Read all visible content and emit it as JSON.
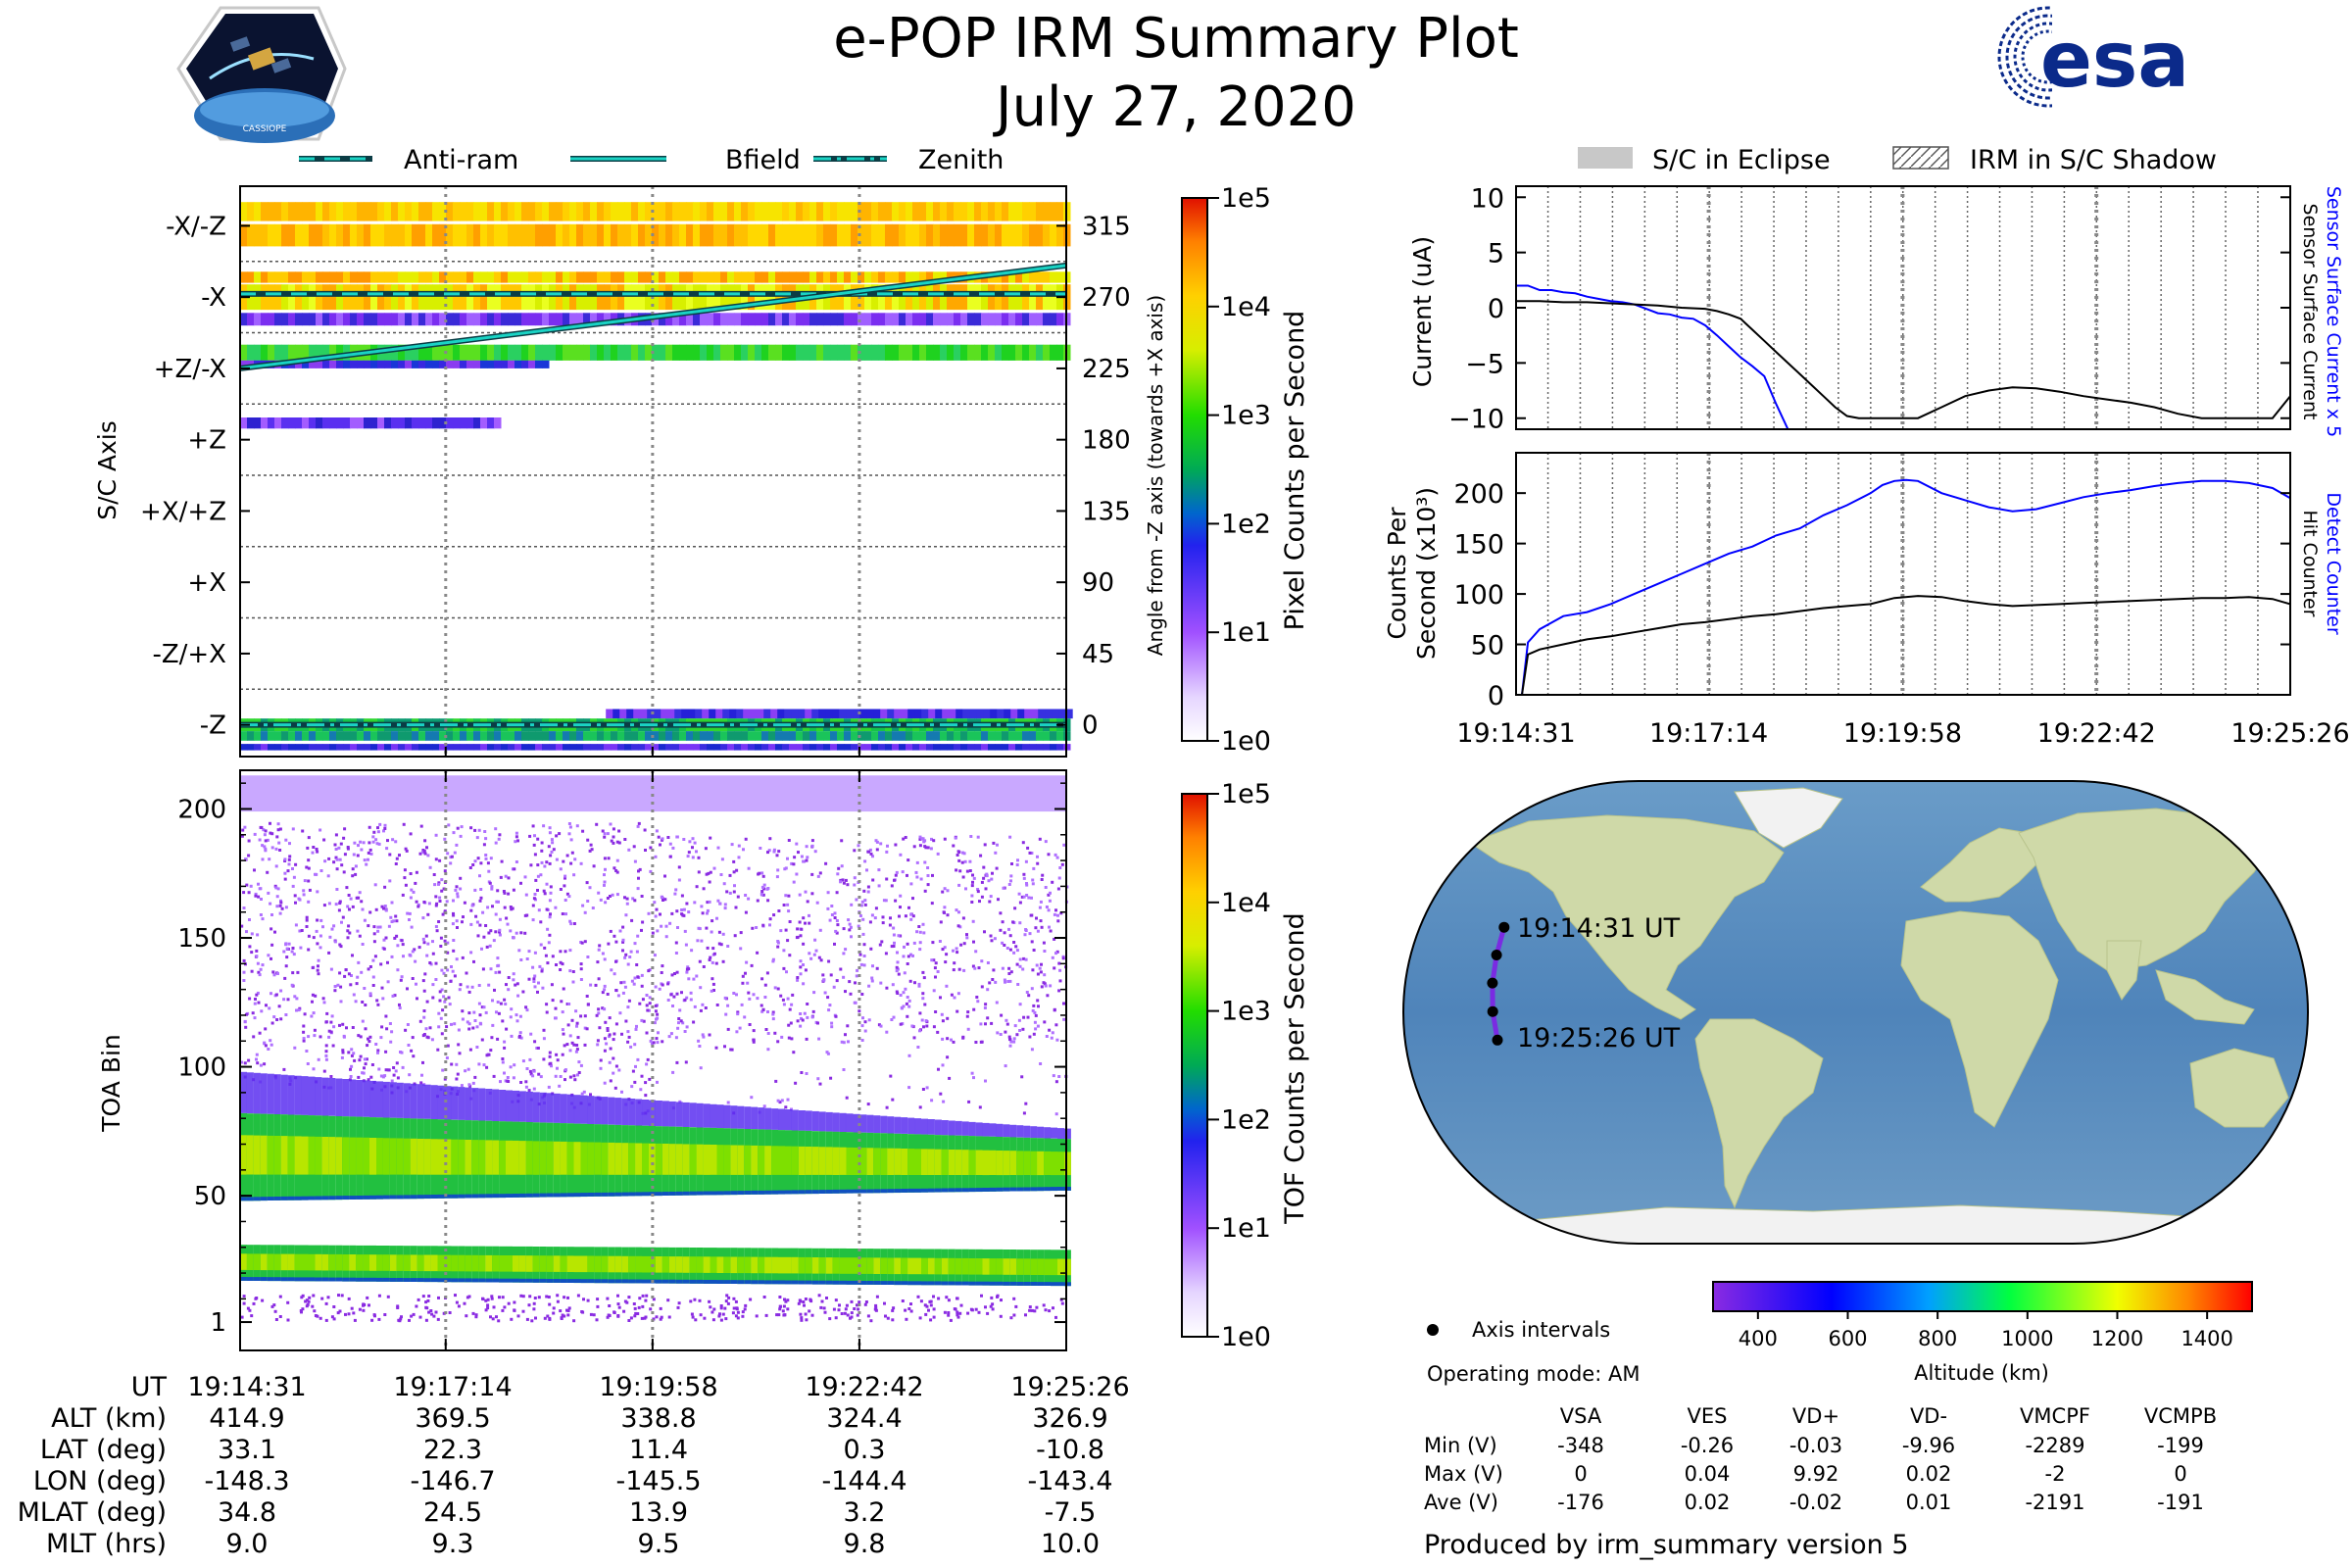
{
  "header": {
    "title_line1": "e-POP IRM Summary Plot",
    "title_line2": "July 27, 2020",
    "mission_logo_text": "CASSIOPE",
    "agency_logo_text": "esa"
  },
  "colors": {
    "cyan": "#1ad3c4",
    "dark_teal": "#0b3d45",
    "blue": "#0000ff",
    "black": "#000000",
    "eclipse_gray": "#c8c8c8",
    "esa_navy": "#0b2a8a"
  },
  "icons": [
    "cassiope-logo-icon",
    "esa-logo-icon",
    "axis-interval-dot-icon"
  ],
  "top_legend": [
    {
      "label": "Anti-ram",
      "style": "dashed"
    },
    {
      "label": "Bfield",
      "style": "solid"
    },
    {
      "label": "Zenith",
      "style": "dashdot"
    }
  ],
  "right_legend": [
    {
      "label": "S/C in Eclipse",
      "style": "filled-gray"
    },
    {
      "label": "IRM in S/C Shadow",
      "style": "hatched"
    }
  ],
  "chart_data": [
    {
      "id": "sc-axis-spectrogram",
      "type": "heatmap",
      "ylabel": "S/C Axis",
      "y_categories": [
        "-X/-Z",
        "-X",
        "+Z/-X",
        "+Z",
        "+X/+Z",
        "+X",
        "-Z/+X",
        "-Z"
      ],
      "right_ylabel": "Angle from -Z axis (towards +X axis)",
      "right_ticks": [
        315,
        270,
        225,
        180,
        135,
        90,
        45,
        0
      ],
      "right_ylim": [
        -20,
        340
      ],
      "xlim_seconds": [
        0,
        655
      ],
      "overlay_lines": [
        {
          "name": "Anti-ram",
          "style": "dashed",
          "start_deg": 272,
          "end_deg": 272
        },
        {
          "name": "Bfield",
          "style": "solid",
          "start_deg": 225,
          "end_deg": 290
        },
        {
          "name": "Zenith",
          "style": "dashdot",
          "start_deg": 0,
          "end_deg": 0
        }
      ],
      "colorbar": {
        "label": "Pixel Counts per Second",
        "ticks": [
          "1e5",
          "1e4",
          "1e3",
          "1e2",
          "1e1",
          "1e0"
        ],
        "scale": "log"
      }
    },
    {
      "id": "toa-spectrogram",
      "type": "heatmap",
      "ylabel": "TOA Bin",
      "yticks": [
        200,
        150,
        100,
        50,
        1
      ],
      "ylim": [
        1,
        210
      ],
      "xlim_seconds": [
        0,
        655
      ],
      "bands": [
        {
          "name": "main band",
          "center_start": 65,
          "center_end": 62,
          "halfwidth_start": 17,
          "halfwidth_end": 10
        },
        {
          "name": "low band",
          "center_start": 24,
          "center_end": 22,
          "halfwidth_start": 7,
          "halfwidth_end": 7
        }
      ],
      "colorbar": {
        "label": "TOF Counts per Second",
        "ticks": [
          "1e5",
          "1e4",
          "1e3",
          "1e2",
          "1e1",
          "1e0"
        ],
        "scale": "log"
      }
    },
    {
      "id": "current-plot",
      "type": "line",
      "ylabel": "Current (uA)",
      "ylim": [
        -11,
        11
      ],
      "yticks": [
        10,
        5,
        0,
        -5,
        -10
      ],
      "xlim_seconds": [
        0,
        655
      ],
      "right_labels": [
        {
          "text": "Sensor Surface Current x 5",
          "color": "blue"
        },
        {
          "text": "Sensor Surface Current",
          "color": "black"
        }
      ],
      "series": [
        {
          "name": "Sensor Surface Current x 5",
          "color": "blue",
          "x": [
            0,
            10,
            20,
            30,
            40,
            50,
            60,
            70,
            80,
            90,
            100,
            110,
            120,
            130,
            140,
            150,
            160,
            170,
            180,
            190,
            200,
            210,
            220,
            230
          ],
          "y": [
            2.0,
            2.0,
            1.6,
            1.6,
            1.4,
            1.3,
            1.0,
            0.8,
            0.6,
            0.5,
            0.3,
            -0.1,
            -0.5,
            -0.6,
            -0.9,
            -1.0,
            -1.6,
            -2.5,
            -3.5,
            -4.5,
            -5.3,
            -6.2,
            -8.7,
            -11.0
          ]
        },
        {
          "name": "Sensor Surface Current",
          "color": "black",
          "x": [
            0,
            20,
            40,
            60,
            80,
            100,
            120,
            140,
            160,
            170,
            180,
            190,
            200,
            210,
            220,
            230,
            240,
            250,
            260,
            270,
            280,
            290,
            300,
            320,
            340,
            360,
            380,
            400,
            420,
            440,
            460,
            480,
            500,
            520,
            540,
            560,
            580,
            600,
            620,
            640,
            655
          ],
          "y": [
            0.6,
            0.6,
            0.5,
            0.5,
            0.4,
            0.3,
            0.2,
            0.0,
            -0.1,
            -0.3,
            -0.6,
            -1.0,
            -2.0,
            -3.0,
            -4.0,
            -5.0,
            -6.0,
            -7.0,
            -8.0,
            -9.0,
            -9.8,
            -10.0,
            -10.0,
            -10.0,
            -10.0,
            -9.0,
            -8.0,
            -7.5,
            -7.2,
            -7.3,
            -7.6,
            -8.0,
            -8.3,
            -8.6,
            -9.0,
            -9.6,
            -10.0,
            -10.0,
            -10.0,
            -10.0,
            -8.0
          ]
        }
      ]
    },
    {
      "id": "counts-plot",
      "type": "line",
      "ylabel_line1": "Counts Per",
      "ylabel_line2": "Second (x10³)",
      "ylim": [
        0,
        240
      ],
      "yticks": [
        200,
        150,
        100,
        50,
        0
      ],
      "xlim_seconds": [
        0,
        655
      ],
      "x_tick_labels": [
        "19:14:31",
        "19:17:14",
        "19:19:58",
        "19:22:42",
        "19:25:26"
      ],
      "x_tick_seconds": [
        0,
        163,
        327,
        491,
        655
      ],
      "right_labels": [
        {
          "text": "Detect Counter",
          "color": "blue"
        },
        {
          "text": "Hit Counter",
          "color": "black"
        }
      ],
      "series": [
        {
          "name": "Detect Counter",
          "color": "blue",
          "x": [
            0,
            5,
            10,
            20,
            40,
            60,
            80,
            100,
            120,
            140,
            160,
            180,
            200,
            220,
            240,
            260,
            280,
            300,
            310,
            320,
            330,
            340,
            360,
            380,
            400,
            420,
            440,
            460,
            480,
            500,
            520,
            540,
            560,
            580,
            600,
            620,
            640,
            655
          ],
          "y": [
            0,
            0,
            52,
            65,
            78,
            82,
            90,
            100,
            110,
            120,
            130,
            140,
            147,
            158,
            165,
            178,
            188,
            200,
            208,
            212,
            213,
            212,
            200,
            193,
            186,
            182,
            184,
            190,
            196,
            200,
            203,
            207,
            210,
            212,
            212,
            210,
            205,
            195
          ]
        },
        {
          "name": "Hit Counter",
          "color": "black",
          "x": [
            0,
            5,
            10,
            20,
            40,
            60,
            80,
            100,
            120,
            140,
            160,
            180,
            200,
            220,
            240,
            260,
            280,
            300,
            320,
            340,
            360,
            380,
            400,
            420,
            440,
            460,
            480,
            500,
            520,
            540,
            560,
            580,
            600,
            620,
            640,
            655
          ],
          "y": [
            0,
            0,
            40,
            45,
            50,
            55,
            58,
            62,
            66,
            70,
            72,
            75,
            78,
            80,
            83,
            86,
            88,
            90,
            96,
            98,
            97,
            93,
            90,
            88,
            89,
            90,
            91,
            92,
            93,
            94,
            95,
            96,
            96,
            97,
            95,
            90
          ]
        }
      ]
    },
    {
      "id": "map",
      "type": "scatter",
      "projection": "Robinson",
      "track_lon": [
        -148.3,
        -146.7,
        -145.5,
        -144.4,
        -143.4
      ],
      "track_lat": [
        33.1,
        22.3,
        11.4,
        0.3,
        -10.8
      ],
      "start_label": "19:14:31 UT",
      "end_label": "19:25:26 UT",
      "legend_label": "Axis intervals",
      "operating_mode": "Operating mode: AM",
      "altitude_colorbar": {
        "label": "Altitude (km)",
        "ticks": [
          400,
          600,
          800,
          1000,
          1200,
          1400
        ],
        "range": [
          300,
          1500
        ]
      }
    },
    {
      "id": "ephemeris-table",
      "type": "table",
      "row_labels": [
        "UT",
        "ALT (km)",
        "LAT (deg)",
        "LON (deg)",
        "MLAT (deg)",
        "MLT (hrs)"
      ],
      "columns": [
        [
          "19:14:31",
          "414.9",
          "33.1",
          "-148.3",
          "34.8",
          "9.0"
        ],
        [
          "19:17:14",
          "369.5",
          "22.3",
          "-146.7",
          "24.5",
          "9.3"
        ],
        [
          "19:19:58",
          "338.8",
          "11.4",
          "-145.5",
          "13.9",
          "9.5"
        ],
        [
          "19:22:42",
          "324.4",
          "0.3",
          "-144.4",
          "3.2",
          "9.8"
        ],
        [
          "19:25:26",
          "326.9",
          "-10.8",
          "-143.4",
          "-7.5",
          "10.0"
        ]
      ]
    },
    {
      "id": "voltage-table",
      "type": "table",
      "headers": [
        "VSA",
        "VES",
        "VD+",
        "VD-",
        "VMCPF",
        "VCMPB"
      ],
      "rows": [
        {
          "label": "Min (V)",
          "values": [
            "-348",
            "-0.26",
            "-0.03",
            "-9.96",
            "-2289",
            "-199"
          ]
        },
        {
          "label": "Max (V)",
          "values": [
            "0",
            "0.04",
            "9.92",
            "0.02",
            "-2",
            "0"
          ]
        },
        {
          "label": "Ave (V)",
          "values": [
            "-176",
            "0.02",
            "-0.02",
            "0.01",
            "-2191",
            "-191"
          ]
        }
      ]
    }
  ],
  "footer": {
    "produced_by": "Produced by irm_summary version 5"
  }
}
